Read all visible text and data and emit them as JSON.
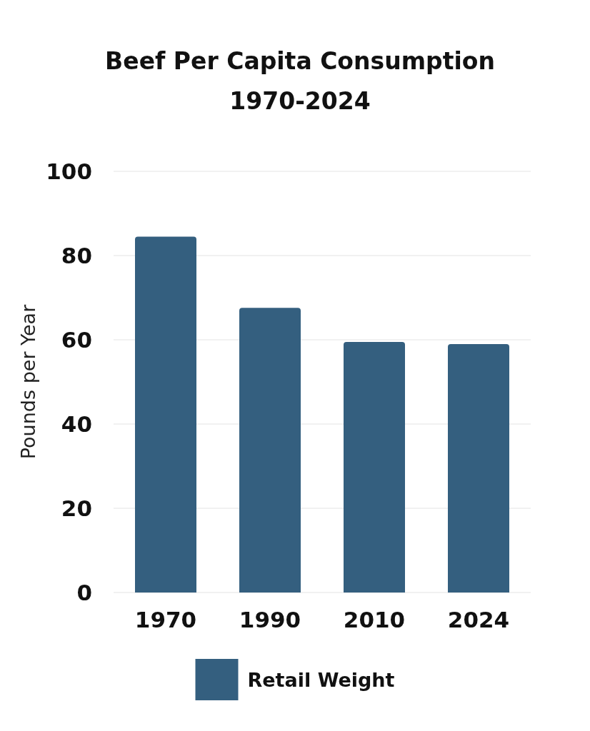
{
  "chart_data": {
    "type": "bar",
    "title": "Beef Per Capita Consumption\n1970-2024",
    "categories": [
      "1970",
      "1990",
      "2010",
      "2024"
    ],
    "series": [
      {
        "name": "Retail Weight",
        "color": "#345f7f",
        "values": [
          84.5,
          67.6,
          59.5,
          59.0
        ]
      }
    ],
    "ylabel": "Pounds per Year",
    "ylim": [
      0,
      100
    ],
    "yticks": [
      0,
      20,
      40,
      60,
      80,
      100
    ],
    "grid": "y",
    "legend": "bottom"
  }
}
